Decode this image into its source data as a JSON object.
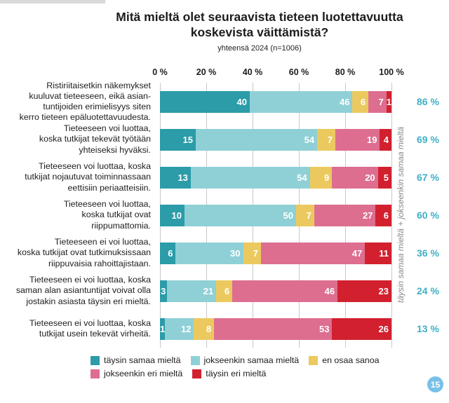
{
  "header": {
    "title": "Mitä mieltä olet seuraavista tieteen luotettavuutta\nkoskevista väittämistä?",
    "subtitle": "yhteensä 2024 (n=1006)"
  },
  "chart_data": {
    "type": "bar",
    "variant": "horizontal-stacked",
    "title": "Mitä mieltä olet seuraavista tieteen luotettavuutta koskevista väittämistä?",
    "subtitle": "yhteensä 2024 (n=1006)",
    "x_axis": {
      "ticks": [
        "0 %",
        "20 %",
        "40 %",
        "60 %",
        "80 %",
        "100 %"
      ],
      "range": [
        0,
        100
      ],
      "grid": true
    },
    "series": [
      {
        "name": "täysin samaa mieltä",
        "color": "#2b9ca8"
      },
      {
        "name": "jokseenkin samaa mieltä",
        "color": "#8fd0d6"
      },
      {
        "name": "en osaa sanoa",
        "color": "#ecc95f"
      },
      {
        "name": "jokseenkin eri mieltä",
        "color": "#dd6e90"
      },
      {
        "name": "täysin eri mieltä",
        "color": "#d2202e"
      }
    ],
    "rows": [
      {
        "label_lines": [
          "Ristiriitaisetkin näkemykset",
          "kuuluvat tieteeseen, eikä asian-",
          "tuntijoiden erimielisyys siten",
          "kerro tieteen epäluotettavuudesta."
        ],
        "values": [
          40,
          46,
          6,
          7,
          1
        ],
        "total": "86 %"
      },
      {
        "label_lines": [
          "Tieteeseen voi luottaa,",
          "koska tutkijat tekevät työtään",
          "yhteiseksi hyväksi."
        ],
        "values": [
          15,
          54,
          7,
          19,
          4
        ],
        "total": "69 %"
      },
      {
        "label_lines": [
          "Tieteeseen voi luottaa, koska",
          "tutkijat nojautuvat toiminnassaan",
          "eettisiin periaatteisiin."
        ],
        "values": [
          13,
          54,
          9,
          20,
          5
        ],
        "total": "67 %"
      },
      {
        "label_lines": [
          "Tieteeseen voi luottaa,",
          "koska tutkijat ovat",
          "riippumattomia."
        ],
        "values": [
          10,
          50,
          7,
          27,
          6
        ],
        "total": "60 %"
      },
      {
        "label_lines": [
          "Tieteeseen ei voi luottaa,",
          "koska tutkijat ovat tutkimuksissaan",
          "riippuvaisia rahoittajistaan."
        ],
        "values": [
          6,
          30,
          7,
          47,
          11
        ],
        "total": "36 %"
      },
      {
        "label_lines": [
          "Tieteeseen ei voi luottaa, koska",
          "saman alan asiantuntijat voivat olla",
          "jostakin asiasta täysin eri mieltä."
        ],
        "values": [
          3,
          21,
          6,
          46,
          23
        ],
        "total": "24 %"
      },
      {
        "label_lines": [
          "Tieteeseen ei voi luottaa, koska",
          "tutkijat usein tekevät virheitä."
        ],
        "values": [
          1,
          12,
          8,
          53,
          26
        ],
        "total": "13 %"
      }
    ],
    "right_axis_label": "täysin samaa mieltä + jokseenkin samaa mieltä",
    "totals_color": "#3fb0c6",
    "legend_position": "bottom",
    "legend_lines": [
      [
        0,
        1,
        2
      ],
      [
        3,
        4
      ]
    ]
  },
  "page_badge": {
    "label": "15",
    "color": "#79c0e9"
  }
}
